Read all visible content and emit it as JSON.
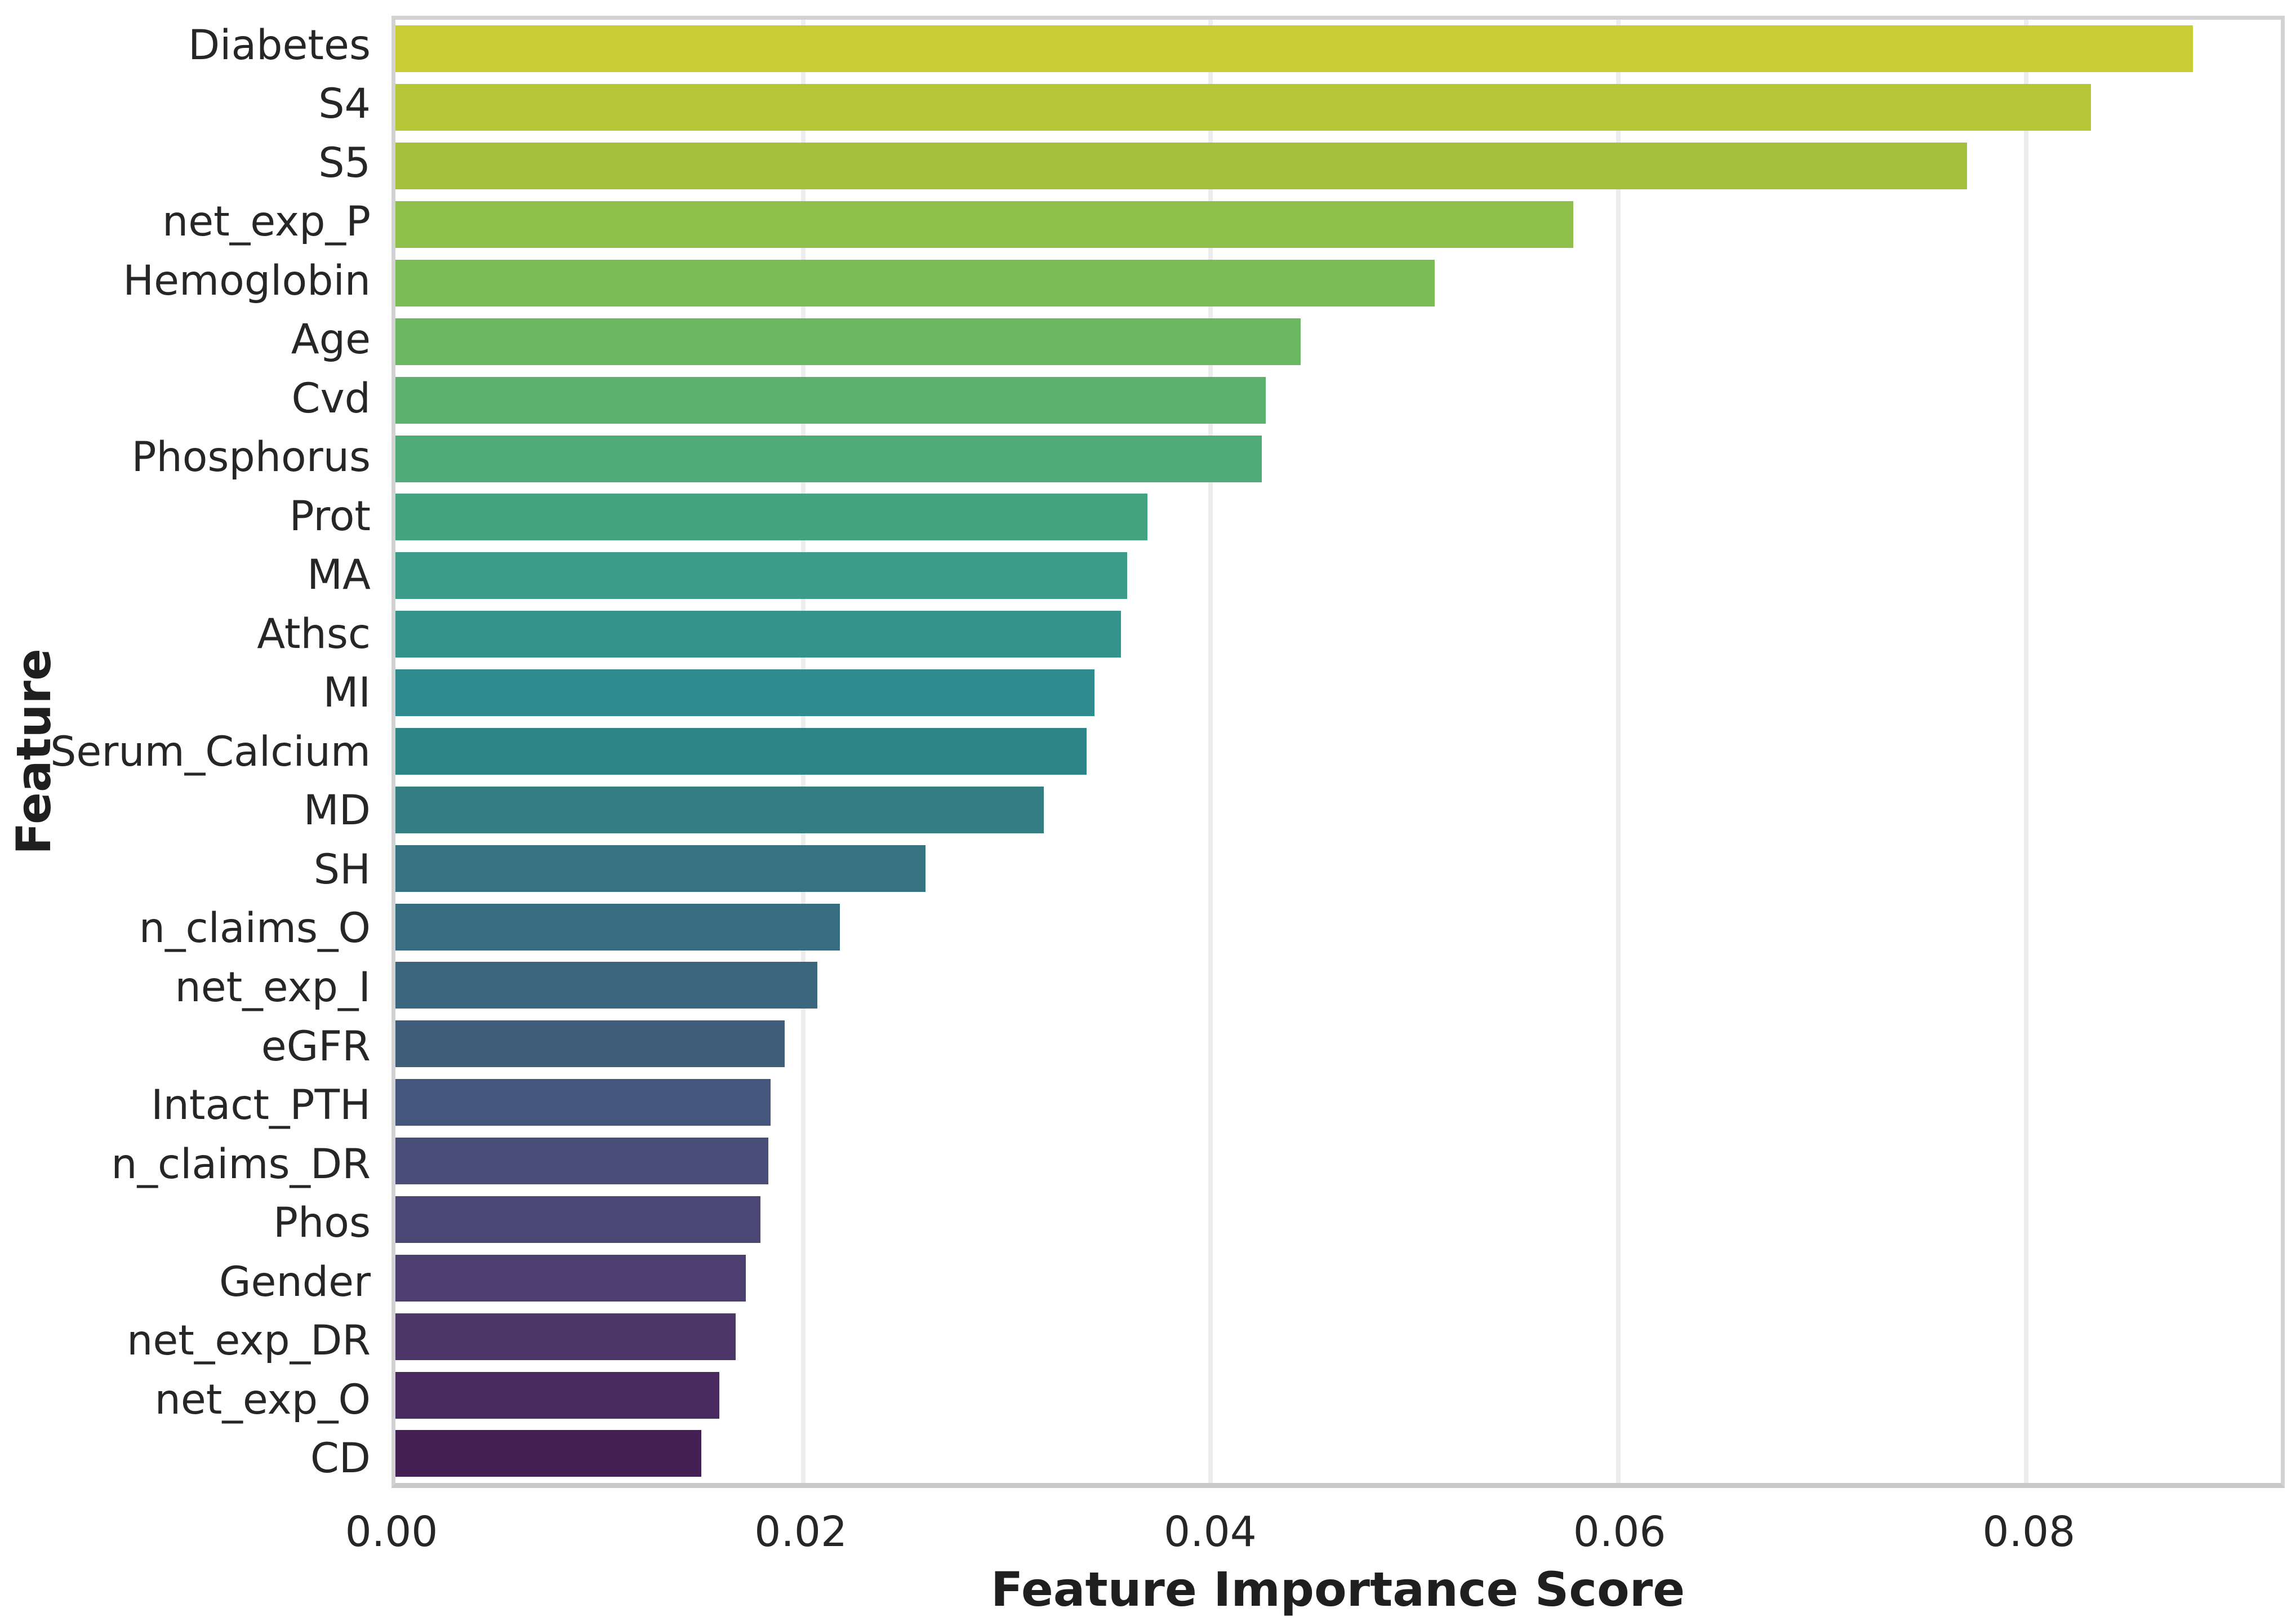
{
  "chart_data": {
    "type": "bar",
    "orientation": "horizontal",
    "xlabel": "Feature Importance Score",
    "ylabel": "Feature",
    "xlim": [
      0,
      0.0925
    ],
    "x_ticks": [
      0.0,
      0.02,
      0.04,
      0.06,
      0.08
    ],
    "x_tick_labels": [
      "0.00",
      "0.02",
      "0.04",
      "0.06",
      "0.08"
    ],
    "grid": "vertical-only",
    "legend": "none",
    "palette": "viridis reversed (desaturated)",
    "categories": [
      "Diabetes",
      "S4",
      "S5",
      "net_exp_P",
      "Hemoglobin",
      "Age",
      "Cvd",
      "Phosphorus",
      "Prot",
      "MA",
      "Athsc",
      "MI",
      "Serum_Calcium",
      "MD",
      "SH",
      "n_claims_O",
      "net_exp_I",
      "eGFR",
      "Intact_PTH",
      "n_claims_DR",
      "Phos",
      "Gender",
      "net_exp_DR",
      "net_exp_O",
      "CD"
    ],
    "values": [
      0.0882,
      0.0832,
      0.0771,
      0.0578,
      0.051,
      0.0444,
      0.0427,
      0.0425,
      0.0369,
      0.0359,
      0.0356,
      0.0343,
      0.0339,
      0.0318,
      0.026,
      0.0218,
      0.0207,
      0.0191,
      0.0184,
      0.0183,
      0.0179,
      0.0172,
      0.0167,
      0.0159,
      0.015
    ],
    "bar_colors": [
      "#c9cc35",
      "#b5c637",
      "#a4c13e",
      "#8fc04c",
      "#7cbc57",
      "#6ab762",
      "#5bb16d",
      "#4eaa77",
      "#43a381",
      "#3b9c89",
      "#33948e",
      "#2e8b8e",
      "#2e8487",
      "#347d83",
      "#357381",
      "#386c80",
      "#3c657e",
      "#405d7c",
      "#44567b",
      "#484e78",
      "#4b4674",
      "#4c3e6f",
      "#4d3668",
      "#4a2b60",
      "#431f54"
    ]
  },
  "colors": {
    "background": "#ffffff",
    "plot_border": "#d2d2d2",
    "gridline": "#ededed",
    "tick_text": "#262626",
    "title_text": "#1f1f1f"
  }
}
